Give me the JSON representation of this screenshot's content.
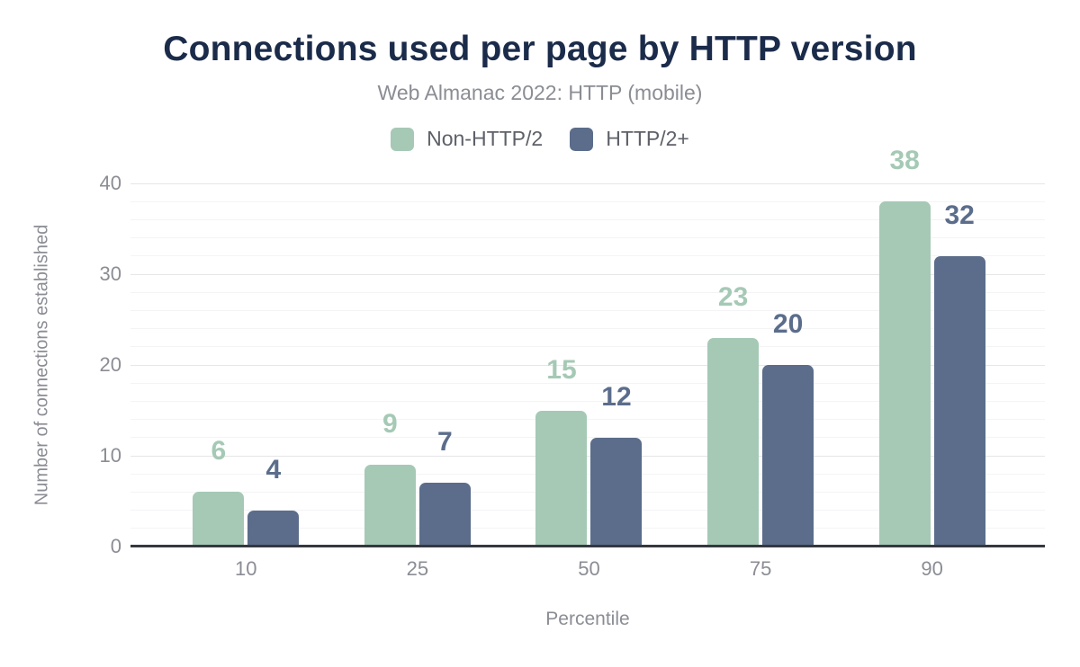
{
  "chart": {
    "title": "Connections used per page by HTTP version",
    "subtitle": "Web Almanac 2022: HTTP (mobile)"
  },
  "chart_data": {
    "type": "bar",
    "categories": [
      "10",
      "25",
      "50",
      "75",
      "90"
    ],
    "series": [
      {
        "name": "Non-HTTP/2",
        "color": "#a5c9b5",
        "values": [
          6,
          9,
          15,
          23,
          38
        ]
      },
      {
        "name": "HTTP/2+",
        "color": "#5b6d8b",
        "values": [
          4,
          7,
          12,
          20,
          32
        ]
      }
    ],
    "title": "Connections used per page by HTTP version",
    "subtitle": "Web Almanac 2022: HTTP (mobile)",
    "xlabel": "Percentile",
    "ylabel": "Number of connections established",
    "ylim": [
      0,
      40
    ],
    "yticks": [
      0,
      10,
      20,
      30,
      40
    ],
    "minor_grid_step": 2,
    "grid": "on",
    "legend_position": "top",
    "data_labels": "above-bars"
  },
  "colors": {
    "title": "#1b2b4a",
    "subtitle": "#8b8d94",
    "legend_text": "#5e6168",
    "axis_line": "#35383e",
    "tick_label": "#8b8d94",
    "gridline_major": "#e5e6e8",
    "gridline_minor": "#f4f4f6",
    "background": "#ffffff"
  }
}
